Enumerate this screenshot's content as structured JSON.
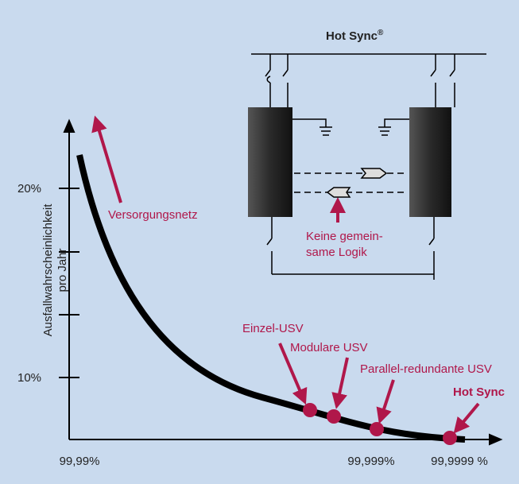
{
  "diagram": {
    "title": "Hot Sync",
    "title_mark": "®",
    "y_axis": {
      "title_lines": [
        "Ausfallwahrscheinlichkeit",
        "pro Jahr"
      ],
      "ticks": [
        "20%",
        "10%"
      ]
    },
    "x_axis": {
      "ticks": [
        "99,99%",
        "99,999%",
        "99,9999 %"
      ]
    },
    "curve_labels": [
      "Versorgungsnetz",
      "Einzel-USV",
      "Modulare USV",
      "Parallel-redundante USV",
      "Hot Sync"
    ],
    "logic_note": [
      "Keine gemein-",
      "same Logik"
    ]
  }
}
